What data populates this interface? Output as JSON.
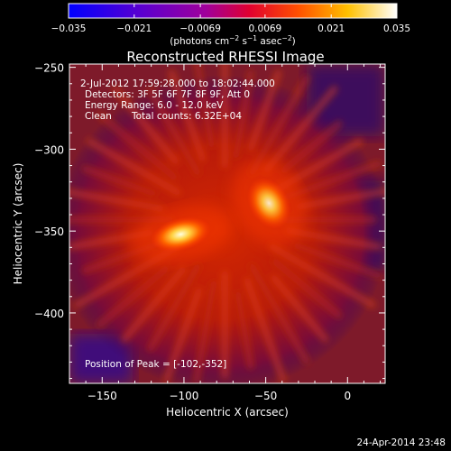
{
  "chart_data": {
    "type": "heatmap",
    "title": "Reconstructed RHESSI Image",
    "xlabel": "Heliocentric X (arcsec)",
    "ylabel": "Heliocentric Y (arcsec)",
    "xlim": [
      -170,
      23
    ],
    "ylim": [
      -443,
      -248
    ],
    "x_ticks": [
      -150,
      -100,
      -50,
      0
    ],
    "y_ticks": [
      -250,
      -300,
      -350,
      -400
    ],
    "x_tick_labels": [
      "−150",
      "−100",
      "−50",
      "0"
    ],
    "y_tick_labels": [
      "−250",
      "−300",
      "−350",
      "−400"
    ],
    "colorbar": {
      "range": [
        -0.035,
        0.035
      ],
      "ticks": [
        -0.035,
        -0.021,
        -0.0069,
        0.0069,
        0.021,
        0.035
      ],
      "tick_labels": [
        "−0.035",
        "−0.021",
        "−0.0069",
        "0.0069",
        "0.021",
        "0.035"
      ],
      "unit_label": "(photons cm",
      "unit_exp1": "−2",
      "unit_mid": " s",
      "unit_exp2": "−1",
      "unit_mid2": " asec",
      "unit_exp3": "−2",
      "unit_end": ")",
      "colormap": [
        "#0000ff",
        "#6a00c8",
        "#b00070",
        "#ff2000",
        "#ff9000",
        "#ffffff"
      ]
    },
    "sources": [
      {
        "x": -102,
        "y": -352,
        "peak": 0.035
      },
      {
        "x": -48,
        "y": -333,
        "peak": 0.031
      }
    ],
    "annotations": {
      "time_range": "2-Jul-2012 17:59:28.000 to 18:02:44.000",
      "detectors": "Detectors: 3F 5F 6F 7F 8F 9F, Att 0",
      "energy_range": "Energy Range: 6.0 - 12.0 keV",
      "method": "Clean",
      "total_counts": "Total counts: 6.32E+04",
      "peak_position": "Position of Peak = [-102,-352]"
    },
    "grid": false
  },
  "footer": {
    "date": "24-Apr-2014 23:48"
  }
}
